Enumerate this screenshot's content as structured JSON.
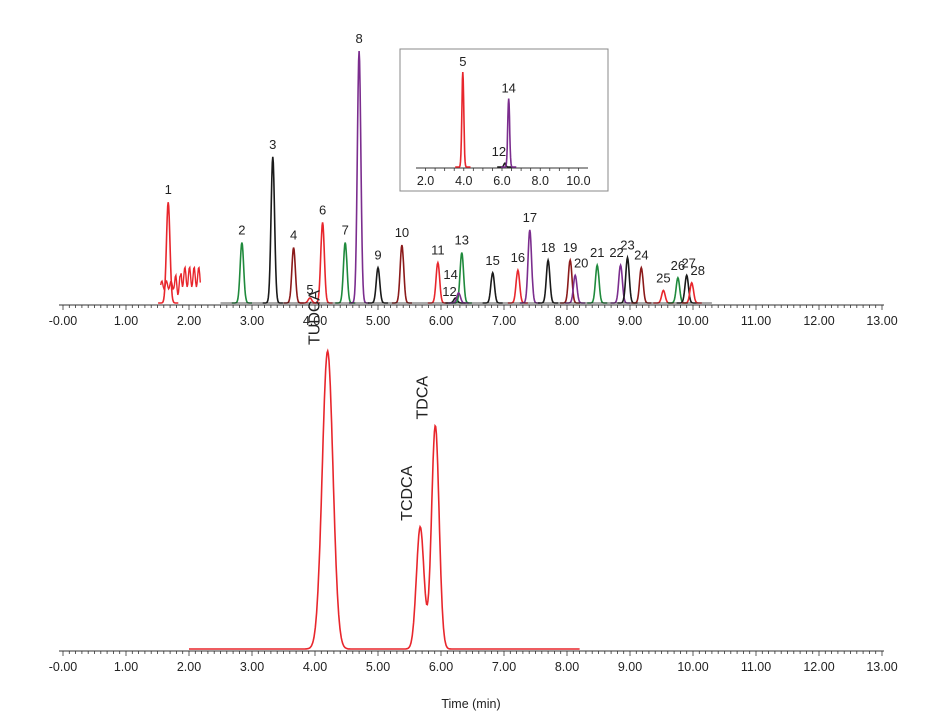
{
  "colors": {
    "red": "#e8262c",
    "green": "#1f8a3c",
    "black": "#1a1a1a",
    "maroon": "#8b1a1a",
    "purple": "#7b2d8e",
    "axis": "#333333"
  },
  "chart_data": [
    {
      "type": "line",
      "subtype": "chromatogram-overlay",
      "xlabel": "",
      "ylabel": "",
      "xlim": [
        0,
        13
      ],
      "x_tick_labels": [
        "-0.00",
        "1.00",
        "2.00",
        "3.00",
        "4.00",
        "5.00",
        "6.00",
        "7.00",
        "8.00",
        "9.00",
        "10.00",
        "11.00",
        "12.00",
        "13.00"
      ],
      "grid": false,
      "peaks": [
        {
          "label": "1",
          "rt": 1.67,
          "height": 0.4,
          "color": "red"
        },
        {
          "label": "2",
          "rt": 2.84,
          "height": 0.24,
          "color": "green"
        },
        {
          "label": "3",
          "rt": 3.33,
          "height": 0.58,
          "color": "black"
        },
        {
          "label": "4",
          "rt": 3.66,
          "height": 0.22,
          "color": "maroon"
        },
        {
          "label": "5",
          "rt": 3.92,
          "height": 0.02,
          "color": "red"
        },
        {
          "label": "6",
          "rt": 4.12,
          "height": 0.32,
          "color": "red"
        },
        {
          "label": "7",
          "rt": 4.48,
          "height": 0.24,
          "color": "green"
        },
        {
          "label": "8",
          "rt": 4.7,
          "height": 1.0,
          "color": "purple"
        },
        {
          "label": "9",
          "rt": 5.0,
          "height": 0.14,
          "color": "black"
        },
        {
          "label": "10",
          "rt": 5.38,
          "height": 0.23,
          "color": "maroon"
        },
        {
          "label": "11",
          "rt": 5.95,
          "height": 0.16,
          "color": "red"
        },
        {
          "label": "12",
          "rt": 6.23,
          "height": 0.02,
          "color": "black"
        },
        {
          "label": "13",
          "rt": 6.33,
          "height": 0.2,
          "color": "green"
        },
        {
          "label": "14",
          "rt": 6.28,
          "height": 0.04,
          "color": "purple"
        },
        {
          "label": "15",
          "rt": 6.82,
          "height": 0.12,
          "color": "black"
        },
        {
          "label": "16",
          "rt": 7.22,
          "height": 0.13,
          "color": "red"
        },
        {
          "label": "17",
          "rt": 7.41,
          "height": 0.29,
          "color": "purple"
        },
        {
          "label": "18",
          "rt": 7.7,
          "height": 0.17,
          "color": "black"
        },
        {
          "label": "19",
          "rt": 8.05,
          "height": 0.17,
          "color": "maroon"
        },
        {
          "label": "20",
          "rt": 8.13,
          "height": 0.11,
          "color": "purple"
        },
        {
          "label": "21",
          "rt": 8.48,
          "height": 0.15,
          "color": "green"
        },
        {
          "label": "22",
          "rt": 8.85,
          "height": 0.15,
          "color": "purple"
        },
        {
          "label": "23",
          "rt": 8.96,
          "height": 0.18,
          "color": "black"
        },
        {
          "label": "24",
          "rt": 9.18,
          "height": 0.14,
          "color": "maroon"
        },
        {
          "label": "25",
          "rt": 9.53,
          "height": 0.05,
          "color": "red"
        },
        {
          "label": "26",
          "rt": 9.76,
          "height": 0.1,
          "color": "green"
        },
        {
          "label": "27",
          "rt": 9.9,
          "height": 0.11,
          "color": "black"
        },
        {
          "label": "28",
          "rt": 9.98,
          "height": 0.08,
          "color": "red"
        }
      ]
    },
    {
      "type": "line",
      "subtype": "chromatogram-inset",
      "xlim": [
        1.5,
        10.5
      ],
      "x_tick_labels": [
        "2.0",
        "4.0",
        "6.0",
        "8.0",
        "10.0"
      ],
      "peaks": [
        {
          "label": "5",
          "rt": 3.95,
          "height": 1.0,
          "color": "red"
        },
        {
          "label": "12",
          "rt": 6.15,
          "height": 0.04,
          "color": "black"
        },
        {
          "label": "14",
          "rt": 6.35,
          "height": 0.72,
          "color": "purple"
        }
      ]
    },
    {
      "type": "line",
      "subtype": "chromatogram",
      "xlabel": "Time (min)",
      "xlim": [
        0,
        13
      ],
      "x_tick_labels": [
        "-0.00",
        "1.00",
        "2.00",
        "3.00",
        "4.00",
        "5.00",
        "6.00",
        "7.00",
        "8.00",
        "9.00",
        "10.00",
        "11.00",
        "12.00",
        "13.00"
      ],
      "series_color": "red",
      "peaks": [
        {
          "label": "TUDCA",
          "rt": 4.2,
          "height": 1.0
        },
        {
          "label": "TCDCA",
          "rt": 5.67,
          "height": 0.41
        },
        {
          "label": "TDCA",
          "rt": 5.91,
          "height": 0.75
        }
      ]
    }
  ]
}
